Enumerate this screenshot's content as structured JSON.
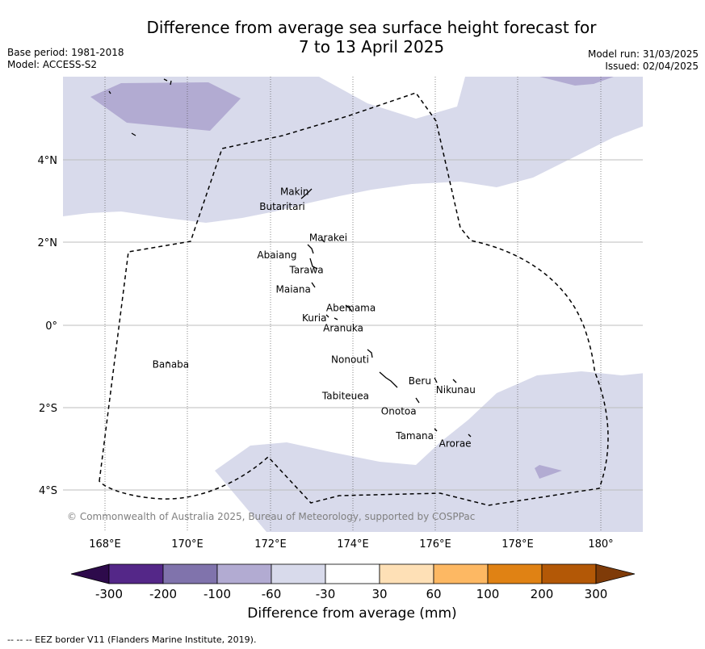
{
  "title": {
    "line1": "Difference from average sea surface height forecast for",
    "line2": "7 to 13 April 2025"
  },
  "meta_left": {
    "base_period": "Base period: 1981-2018",
    "model": "Model: ACCESS-S2"
  },
  "meta_right": {
    "model_run": "Model run: 31/03/2025",
    "issued": "Issued: 02/04/2025"
  },
  "axes": {
    "y_ticks": [
      "4°N",
      "2°N",
      "0°",
      "2°S",
      "4°S"
    ],
    "x_ticks": [
      "168°E",
      "170°E",
      "172°E",
      "174°E",
      "176°E",
      "178°E",
      "180°"
    ]
  },
  "islands": [
    {
      "name": "Makin",
      "lon": 172.95,
      "lat": 3.1
    },
    {
      "name": "Butaritari",
      "lon": 172.8,
      "lat": 3.05
    },
    {
      "name": "Marakei",
      "lon": 173.3,
      "lat": 2.0
    },
    {
      "name": "Abaiang",
      "lon": 172.9,
      "lat": 1.8
    },
    {
      "name": "Tarawa",
      "lon": 173.0,
      "lat": 1.4
    },
    {
      "name": "Maiana",
      "lon": 173.0,
      "lat": 0.95
    },
    {
      "name": "Abemama",
      "lon": 173.85,
      "lat": 0.4
    },
    {
      "name": "Kuria",
      "lon": 173.4,
      "lat": 0.2
    },
    {
      "name": "Aranuka",
      "lon": 173.6,
      "lat": 0.15
    },
    {
      "name": "Banaba",
      "lon": 169.5,
      "lat": -0.85
    },
    {
      "name": "Nonouti",
      "lon": 174.4,
      "lat": -0.65
    },
    {
      "name": "Tabiteuea",
      "lon": 174.75,
      "lat": -1.3
    },
    {
      "name": "Beru",
      "lon": 176.0,
      "lat": -1.35
    },
    {
      "name": "Nikunau",
      "lon": 176.45,
      "lat": -1.35
    },
    {
      "name": "Onotoa",
      "lon": 175.55,
      "lat": -1.85
    },
    {
      "name": "Tamana",
      "lon": 175.95,
      "lat": -2.5
    },
    {
      "name": "Arorae",
      "lon": 176.8,
      "lat": -2.65
    }
  ],
  "copyright": "© Commonwealth of Australia 2025, Bureau of Meteorology, supported by COSPPac",
  "colorbar": {
    "ticks": [
      "-300",
      "-200",
      "-100",
      "-60",
      "-30",
      "30",
      "60",
      "100",
      "200",
      "300"
    ],
    "colors": [
      "#2d0a4b",
      "#542788",
      "#8073ac",
      "#b2abd2",
      "#d8daeb",
      "#ffffff",
      "#fee0b6",
      "#fdb863",
      "#e08214",
      "#b35806",
      "#7f3b08"
    ],
    "title": "Difference from average (mm)"
  },
  "footer": "-- -- -- EEZ border V11 (Flanders Marine Institute, 2019)."
}
